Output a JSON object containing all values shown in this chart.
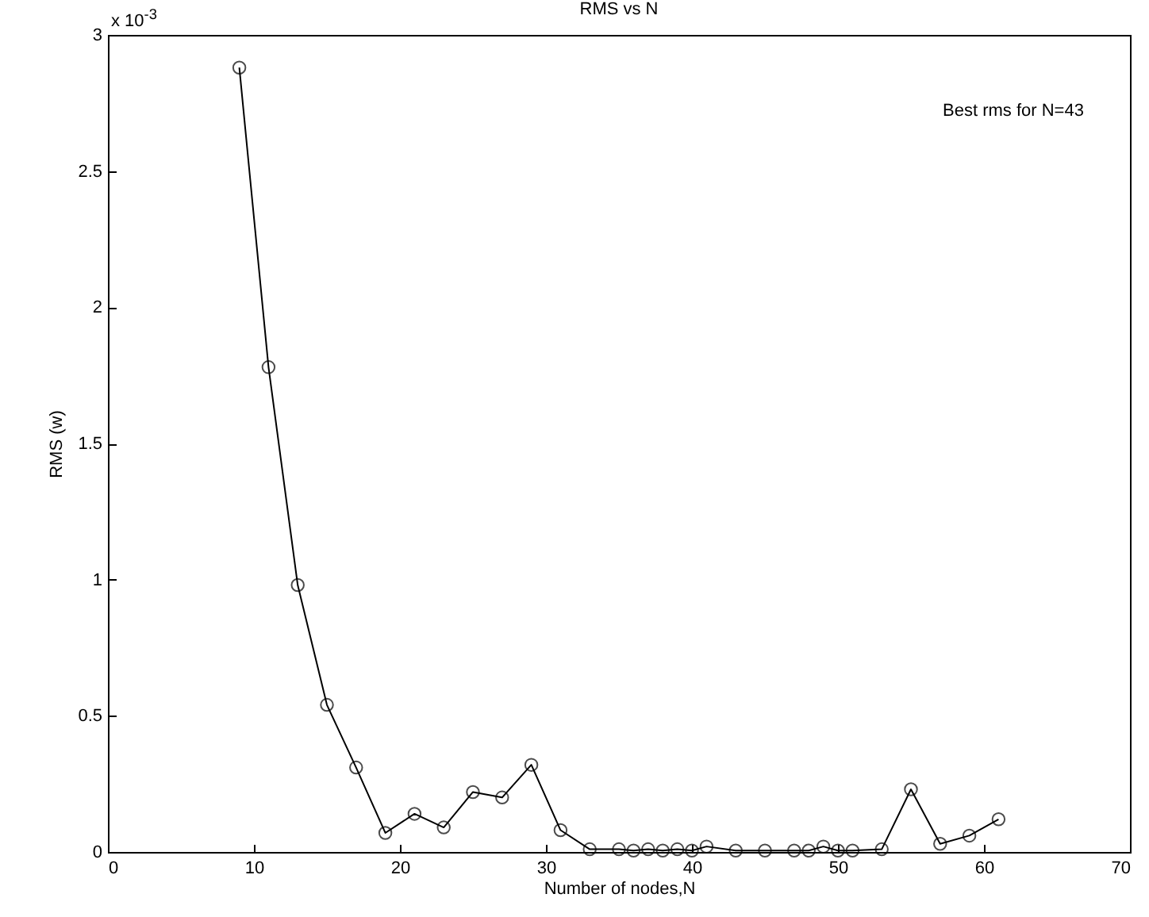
{
  "chart_data": {
    "type": "line",
    "title": "RMS vs N",
    "xlabel": "Number of nodes,N",
    "ylabel": "RMS (w)",
    "annotations": [
      "x 10$^{-3}$",
      "Best rms for N=43"
    ],
    "x": [
      9,
      11,
      13,
      15,
      17,
      19,
      21,
      23,
      25,
      27,
      29,
      31,
      33,
      35,
      36,
      37,
      38,
      39,
      40,
      41,
      43,
      45,
      47,
      48,
      49,
      50,
      51,
      53,
      55,
      57,
      59,
      61
    ],
    "series": [
      {
        "color": "#000000",
        "values": [
          2.88,
          1.78,
          0.98,
          0.54,
          0.31,
          0.07,
          0.14,
          0.09,
          0.22,
          0.2,
          0.32,
          0.08,
          0.01,
          0.01,
          0.005,
          0.01,
          0.005,
          0.01,
          0.005,
          0.02,
          0.005,
          0.005,
          0.005,
          0.005,
          0.02,
          0.005,
          0.005,
          0.01,
          0.23,
          0.03,
          0.06,
          0.12
        ]
      }
    ],
    "xlim": [
      0,
      70
    ],
    "xticks": [
      0,
      10,
      20,
      30,
      40,
      50,
      60,
      70
    ],
    "ylim": [
      0,
      3
    ],
    "yticks": [
      0,
      0.5,
      1,
      1.5,
      2,
      2.5,
      3
    ],
    "grid": false,
    "marker": "circle",
    "line_style": "solid"
  }
}
